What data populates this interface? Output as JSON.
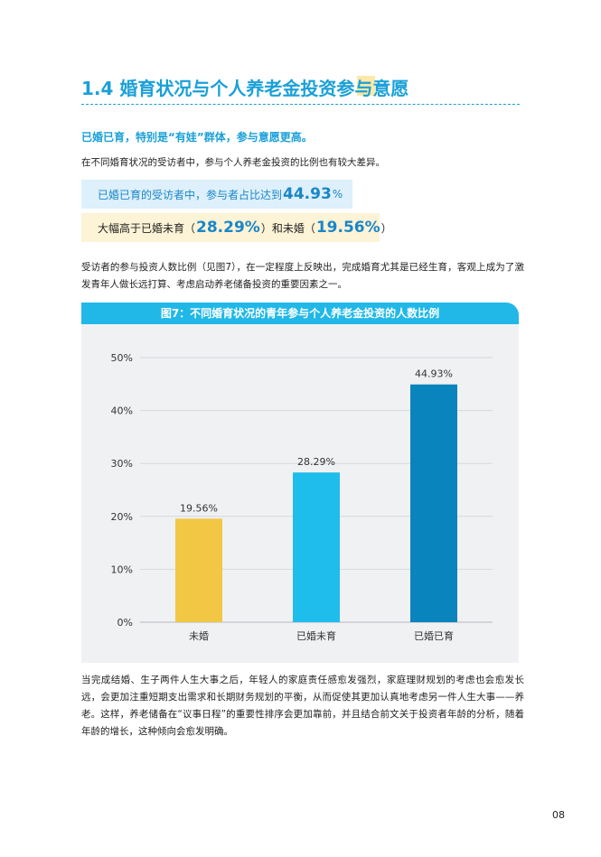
{
  "section": {
    "title": "1.4 婚育状况与个人养老金投资参与意愿",
    "subtitle": "已婚已育，特别是“有娃”群体，参与意愿更高。",
    "intro": "在不同婚育状况的受访者中，参与个人养老金投资的比例也有较大差异。"
  },
  "highlights": {
    "h1_text": "已婚已育的受访者中，参与者占比达到",
    "h1_value": "44.93",
    "h1_unit": "%",
    "h2_prefix": "大幅高于已婚未育（",
    "h2_value1": "28.29%",
    "h2_mid": "）和未婚（",
    "h2_value2": "19.56%",
    "h2_suffix": "）"
  },
  "paragraphs": {
    "p1": "受访者的参与投资人数比例（见图7），在一定程度上反映出，完成婚育尤其是已经生育，客观上成为了激发青年人做长远打算、考虑启动养老储备投资的重要因素之一。",
    "p2": "当完成结婚、生子两件人生大事之后，年轻人的家庭责任感愈发强烈，家庭理财规划的考虑也会愈发长远，会更加注重短期支出需求和长期财务规划的平衡，从而促使其更加认真地考虑另一件人生大事——养老。这样，养老储备在“议事日程”的重要性排序会更加靠前，并且结合前文关于投资者年龄的分析，随着年龄的增长，这种倾向会愈发明确。"
  },
  "chart_data": {
    "type": "bar",
    "title": "图7：不同婚育状况的青年参与个人养老金投资的人数比例",
    "categories": [
      "未婚",
      "已婚未育",
      "已婚已育"
    ],
    "values": [
      19.56,
      28.29,
      44.93
    ],
    "value_labels": [
      "19.56%",
      "28.29%",
      "44.93%"
    ],
    "colors": [
      "#f2c744",
      "#1ebdeb",
      "#0a84bd"
    ],
    "ylim": [
      0,
      50
    ],
    "yticks": [
      "0%",
      "10%",
      "20%",
      "30%",
      "40%",
      "50%"
    ],
    "grid": true
  },
  "page_number": "08"
}
